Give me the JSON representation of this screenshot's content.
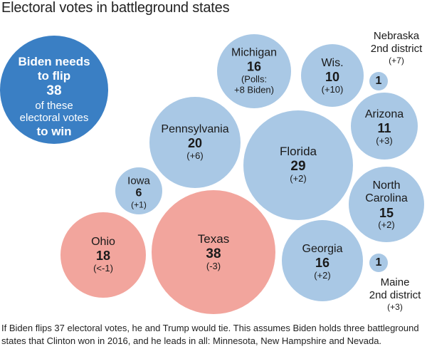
{
  "title": "Electoral votes in battleground states",
  "callout": {
    "line1": "Biden needs",
    "line2": "to flip",
    "number": "38",
    "line3": "of these",
    "line4": "electoral votes",
    "line5": "to win"
  },
  "colors": {
    "biden_circle": "#3a7fc4",
    "blue_state": "#a9c8e5",
    "red_state": "#f2a59d"
  },
  "chart_data": {
    "type": "bubble",
    "title": "Electoral votes in battleground states",
    "states": [
      {
        "name": "Michigan",
        "votes": 16,
        "poll": "(Polls:\n+8 Biden)",
        "party": "blue"
      },
      {
        "name": "Wis.",
        "votes": 10,
        "poll": "(+10)",
        "party": "blue"
      },
      {
        "name": "Nebraska 2nd district",
        "votes": 1,
        "poll": "(+7)",
        "party": "blue"
      },
      {
        "name": "Arizona",
        "votes": 11,
        "poll": "(+3)",
        "party": "blue"
      },
      {
        "name": "Pennsylvania",
        "votes": 20,
        "poll": "(+6)",
        "party": "blue"
      },
      {
        "name": "Florida",
        "votes": 29,
        "poll": "(+2)",
        "party": "blue"
      },
      {
        "name": "Iowa",
        "votes": 6,
        "poll": "(+1)",
        "party": "blue"
      },
      {
        "name": "North Carolina",
        "votes": 15,
        "poll": "(+2)",
        "party": "blue"
      },
      {
        "name": "Ohio",
        "votes": 18,
        "poll": "(<-1)",
        "party": "red"
      },
      {
        "name": "Texas",
        "votes": 38,
        "poll": "(-3)",
        "party": "red"
      },
      {
        "name": "Georgia",
        "votes": 16,
        "poll": "(+2)",
        "party": "blue"
      },
      {
        "name": "Maine 2nd district",
        "votes": 1,
        "poll": "(+3)",
        "party": "blue"
      }
    ]
  },
  "labels": {
    "michigan": {
      "name": "Michigan",
      "num": "16",
      "poll1": "(Polls:",
      "poll2": "+8 Biden)"
    },
    "wis": {
      "name": "Wis.",
      "num": "10",
      "delta": "(+10)"
    },
    "nebraska": {
      "name1": "Nebraska",
      "name2": "2nd district",
      "num": "1",
      "delta": "(+7)"
    },
    "arizona": {
      "name": "Arizona",
      "num": "11",
      "delta": "(+3)"
    },
    "pennsylvania": {
      "name": "Pennsylvania",
      "num": "20",
      "delta": "(+6)"
    },
    "florida": {
      "name": "Florida",
      "num": "29",
      "delta": "(+2)"
    },
    "iowa": {
      "name": "Iowa",
      "num": "6",
      "delta": "(+1)"
    },
    "north_carolina": {
      "name1": "North",
      "name2": "Carolina",
      "num": "15",
      "delta": "(+2)"
    },
    "ohio": {
      "name": "Ohio",
      "num": "18",
      "delta": "(<-1)"
    },
    "texas": {
      "name": "Texas",
      "num": "38",
      "delta": "(-3)"
    },
    "georgia": {
      "name": "Georgia",
      "num": "16",
      "delta": "(+2)"
    },
    "maine": {
      "name1": "Maine",
      "name2": "2nd district",
      "num": "1",
      "delta": "(+3)"
    }
  },
  "footnote": "If Biden flips 37 electoral votes, he and Trump would tie. This assumes Biden holds three battleground states that Clinton won in 2016, and he leads in all: Minnesota, New Hampshire and Nevada."
}
